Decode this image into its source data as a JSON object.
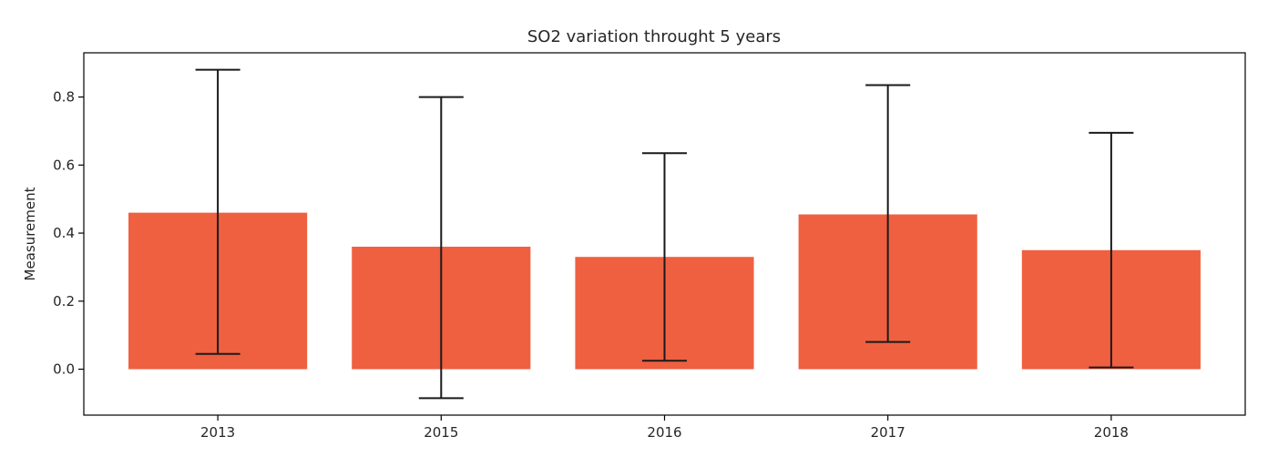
{
  "chart_data": {
    "type": "bar",
    "title": "SO2 variation throught 5 years",
    "xlabel": "",
    "ylabel": "Measurement",
    "categories": [
      "2013",
      "2015",
      "2016",
      "2017",
      "2018"
    ],
    "values": [
      0.46,
      0.36,
      0.33,
      0.455,
      0.35
    ],
    "error_low": [
      0.045,
      -0.085,
      0.025,
      0.08,
      0.005
    ],
    "error_high": [
      0.88,
      0.8,
      0.635,
      0.835,
      0.695
    ],
    "ylim": [
      -0.135,
      0.93
    ],
    "yticks": [
      "0.0",
      "0.2",
      "0.4",
      "0.6",
      "0.8"
    ],
    "ytick_values": [
      0.0,
      0.2,
      0.4,
      0.6,
      0.8
    ],
    "bar_color": "#ef6040",
    "error_color": "#1a1a1a",
    "grid": false,
    "legend": "none"
  }
}
